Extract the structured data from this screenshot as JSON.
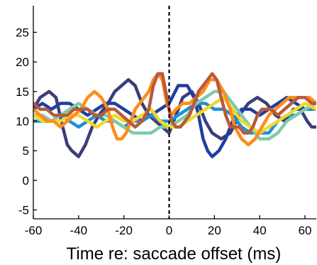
{
  "chart_data": {
    "type": "line",
    "title": "",
    "xlabel": "Time re: saccade offset (ms)",
    "ylabel": "",
    "xlim": [
      -60,
      65
    ],
    "ylim": [
      -6.5,
      29.5
    ],
    "xticks": [
      -60,
      -40,
      -20,
      0,
      20,
      40,
      60
    ],
    "xtick_labels": [
      "-60",
      "-40",
      "-20",
      "0",
      "20",
      "40",
      "60"
    ],
    "yticks": [
      -5,
      0,
      5,
      10,
      15,
      20,
      25
    ],
    "ytick_labels": [
      "-5",
      "0",
      "5",
      "10",
      "15",
      "20",
      "25"
    ],
    "reference_line": {
      "x": 0,
      "style": "dashed",
      "color": "#000000"
    },
    "grid": false,
    "legend": "none",
    "series": [
      {
        "color": "#3a3f7a",
        "points": [
          [
            -60,
            12
          ],
          [
            -57,
            14
          ],
          [
            -53,
            15
          ],
          [
            -50,
            14
          ],
          [
            -47,
            9
          ],
          [
            -45,
            6
          ],
          [
            -43,
            5
          ],
          [
            -40,
            4
          ],
          [
            -37,
            6
          ],
          [
            -34,
            9
          ],
          [
            -31,
            11
          ],
          [
            -29,
            12
          ],
          [
            -27,
            13
          ],
          [
            -24,
            15
          ],
          [
            -21,
            16
          ],
          [
            -18,
            17
          ],
          [
            -15,
            16
          ],
          [
            -12,
            13
          ],
          [
            -9,
            11
          ],
          [
            -6,
            10
          ],
          [
            -3,
            9
          ],
          [
            0,
            8
          ],
          [
            3,
            11
          ],
          [
            6,
            14
          ],
          [
            10,
            15
          ],
          [
            13,
            13
          ],
          [
            16,
            10
          ],
          [
            19,
            8
          ],
          [
            23,
            7
          ],
          [
            27,
            8
          ],
          [
            31,
            11
          ],
          [
            35,
            13
          ],
          [
            39,
            14
          ],
          [
            43,
            13
          ],
          [
            47,
            11
          ],
          [
            51,
            10
          ],
          [
            55,
            12
          ],
          [
            58,
            12
          ],
          [
            61,
            10
          ],
          [
            63,
            9
          ],
          [
            65,
            9
          ]
        ]
      },
      {
        "color": "#1f3f9f",
        "points": [
          [
            -60,
            12
          ],
          [
            -56,
            13
          ],
          [
            -52,
            12
          ],
          [
            -48,
            13
          ],
          [
            -44,
            13
          ],
          [
            -40,
            12
          ],
          [
            -36,
            11
          ],
          [
            -32,
            12
          ],
          [
            -28,
            13
          ],
          [
            -24,
            13
          ],
          [
            -20,
            12
          ],
          [
            -16,
            11
          ],
          [
            -12,
            10
          ],
          [
            -8,
            11
          ],
          [
            -4,
            12
          ],
          [
            0,
            13
          ],
          [
            4,
            16
          ],
          [
            8,
            16
          ],
          [
            11,
            14
          ],
          [
            13,
            11
          ],
          [
            15,
            7
          ],
          [
            17,
            5
          ],
          [
            19,
            4
          ],
          [
            22,
            5
          ],
          [
            25,
            7
          ],
          [
            28,
            10
          ],
          [
            32,
            12
          ],
          [
            36,
            12
          ],
          [
            40,
            11
          ],
          [
            44,
            12
          ],
          [
            48,
            13
          ],
          [
            52,
            14
          ],
          [
            56,
            13
          ],
          [
            60,
            12
          ],
          [
            65,
            12
          ]
        ]
      },
      {
        "color": "#1e90d6",
        "points": [
          [
            -60,
            10
          ],
          [
            -56,
            10
          ],
          [
            -52,
            10
          ],
          [
            -48,
            11
          ],
          [
            -44,
            10
          ],
          [
            -40,
            9
          ],
          [
            -36,
            10
          ],
          [
            -32,
            11
          ],
          [
            -28,
            10
          ],
          [
            -24,
            10
          ],
          [
            -20,
            9
          ],
          [
            -16,
            10
          ],
          [
            -12,
            10
          ],
          [
            -8,
            11
          ],
          [
            -4,
            10
          ],
          [
            0,
            10
          ],
          [
            4,
            11
          ],
          [
            8,
            12
          ],
          [
            12,
            13
          ],
          [
            16,
            13
          ],
          [
            20,
            12
          ],
          [
            24,
            12
          ],
          [
            28,
            11
          ],
          [
            32,
            9
          ],
          [
            36,
            8
          ],
          [
            40,
            8
          ],
          [
            44,
            8
          ],
          [
            48,
            10
          ],
          [
            52,
            11
          ],
          [
            56,
            11
          ],
          [
            60,
            12
          ],
          [
            65,
            12
          ]
        ]
      },
      {
        "color": "#7ecbab",
        "points": [
          [
            -60,
            11
          ],
          [
            -56,
            11
          ],
          [
            -52,
            10
          ],
          [
            -48,
            11
          ],
          [
            -44,
            12
          ],
          [
            -40,
            13
          ],
          [
            -36,
            12
          ],
          [
            -32,
            11
          ],
          [
            -28,
            11
          ],
          [
            -24,
            10
          ],
          [
            -20,
            9
          ],
          [
            -16,
            8
          ],
          [
            -12,
            8
          ],
          [
            -8,
            8
          ],
          [
            -4,
            9
          ],
          [
            0,
            9
          ],
          [
            4,
            10
          ],
          [
            8,
            11
          ],
          [
            12,
            13
          ],
          [
            16,
            14
          ],
          [
            20,
            15
          ],
          [
            24,
            15
          ],
          [
            28,
            13
          ],
          [
            32,
            11
          ],
          [
            36,
            9
          ],
          [
            40,
            7
          ],
          [
            44,
            7
          ],
          [
            48,
            8
          ],
          [
            52,
            10
          ],
          [
            56,
            11
          ],
          [
            60,
            12
          ],
          [
            65,
            13
          ]
        ]
      },
      {
        "color": "#f0d92a",
        "points": [
          [
            -60,
            11
          ],
          [
            -56,
            10
          ],
          [
            -52,
            10
          ],
          [
            -48,
            10
          ],
          [
            -44,
            11
          ],
          [
            -40,
            11
          ],
          [
            -36,
            10
          ],
          [
            -32,
            9
          ],
          [
            -28,
            10
          ],
          [
            -24,
            11
          ],
          [
            -20,
            10
          ],
          [
            -16,
            10
          ],
          [
            -12,
            11
          ],
          [
            -8,
            12
          ],
          [
            -4,
            10
          ],
          [
            0,
            9
          ],
          [
            4,
            9
          ],
          [
            8,
            10
          ],
          [
            12,
            11
          ],
          [
            16,
            12
          ],
          [
            20,
            13
          ],
          [
            24,
            14
          ],
          [
            28,
            12
          ],
          [
            32,
            10
          ],
          [
            36,
            9
          ],
          [
            40,
            8
          ],
          [
            44,
            9
          ],
          [
            48,
            10
          ],
          [
            52,
            11
          ],
          [
            56,
            12
          ],
          [
            60,
            13
          ],
          [
            65,
            12
          ]
        ]
      },
      {
        "color": "#ff8c1a",
        "points": [
          [
            -60,
            12
          ],
          [
            -57,
            11
          ],
          [
            -54,
            10
          ],
          [
            -51,
            10
          ],
          [
            -48,
            9
          ],
          [
            -45,
            10
          ],
          [
            -42,
            11
          ],
          [
            -39,
            12
          ],
          [
            -36,
            14
          ],
          [
            -33,
            15
          ],
          [
            -30,
            14
          ],
          [
            -27,
            12
          ],
          [
            -25,
            9
          ],
          [
            -23,
            7
          ],
          [
            -21,
            7
          ],
          [
            -19,
            8
          ],
          [
            -17,
            10
          ],
          [
            -15,
            12
          ],
          [
            -13,
            13
          ],
          [
            -11,
            14
          ],
          [
            -9,
            15
          ],
          [
            -7,
            17
          ],
          [
            -5,
            18
          ],
          [
            -3,
            17
          ],
          [
            -1,
            13
          ],
          [
            1,
            11
          ],
          [
            3,
            12
          ],
          [
            6,
            13
          ],
          [
            9,
            13
          ],
          [
            12,
            14
          ],
          [
            15,
            15
          ],
          [
            18,
            17
          ],
          [
            21,
            17
          ],
          [
            24,
            15
          ],
          [
            27,
            12
          ],
          [
            29,
            9
          ],
          [
            32,
            7
          ],
          [
            35,
            6
          ],
          [
            38,
            7
          ],
          [
            41,
            9
          ],
          [
            44,
            11
          ],
          [
            47,
            12
          ],
          [
            50,
            13
          ],
          [
            53,
            14
          ],
          [
            56,
            14
          ],
          [
            59,
            14
          ],
          [
            62,
            14
          ],
          [
            65,
            13
          ]
        ]
      },
      {
        "color": "#b85a3a",
        "points": [
          [
            -60,
            13
          ],
          [
            -57,
            12
          ],
          [
            -54,
            12
          ],
          [
            -51,
            11
          ],
          [
            -48,
            11
          ],
          [
            -45,
            11
          ],
          [
            -42,
            12
          ],
          [
            -39,
            12
          ],
          [
            -36,
            12
          ],
          [
            -33,
            11
          ],
          [
            -30,
            11
          ],
          [
            -27,
            12
          ],
          [
            -24,
            12
          ],
          [
            -21,
            11
          ],
          [
            -18,
            10
          ],
          [
            -15,
            9
          ],
          [
            -12,
            10
          ],
          [
            -9,
            12
          ],
          [
            -7,
            16
          ],
          [
            -5,
            18
          ],
          [
            -3,
            18
          ],
          [
            -1,
            14
          ],
          [
            1,
            10
          ],
          [
            3,
            9
          ],
          [
            5,
            9
          ],
          [
            7,
            10
          ],
          [
            9,
            11
          ],
          [
            11,
            13
          ],
          [
            13,
            15
          ],
          [
            15,
            16
          ],
          [
            17,
            17
          ],
          [
            19,
            18
          ],
          [
            21,
            17
          ],
          [
            23,
            14
          ],
          [
            25,
            11
          ],
          [
            27,
            9
          ],
          [
            29,
            9
          ],
          [
            31,
            9
          ],
          [
            33,
            8
          ],
          [
            35,
            8
          ],
          [
            37,
            9
          ],
          [
            39,
            11
          ],
          [
            41,
            12
          ],
          [
            43,
            12
          ],
          [
            45,
            12
          ],
          [
            48,
            11
          ],
          [
            51,
            12
          ],
          [
            54,
            13
          ],
          [
            57,
            14
          ],
          [
            60,
            14
          ],
          [
            63,
            13
          ],
          [
            65,
            13
          ]
        ]
      }
    ]
  }
}
